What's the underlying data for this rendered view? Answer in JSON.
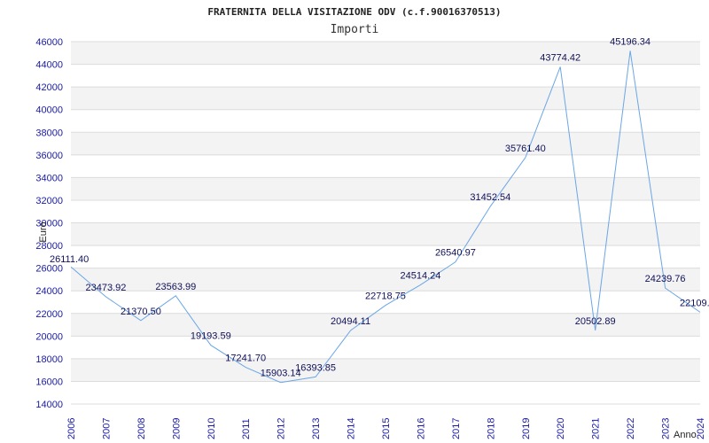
{
  "chart_data": {
    "type": "line",
    "title": "FRATERNITA DELLA VISITAZIONE ODV (c.f.90016370513)",
    "subtitle": "Importi",
    "xlabel": "Anno",
    "ylabel": "Euro",
    "ylim": [
      14000,
      46000
    ],
    "ystep": 2000,
    "grid": true,
    "line_color": "#6aa6e6",
    "x": [
      "2006",
      "2007",
      "2008",
      "2009",
      "2010",
      "2011",
      "2012",
      "2013",
      "2014",
      "2015",
      "2016",
      "2017",
      "2018",
      "2019",
      "2020",
      "2021",
      "2022",
      "2023",
      "2024"
    ],
    "values": [
      26111.4,
      23473.92,
      21370.5,
      23563.99,
      19193.59,
      17241.7,
      15903.14,
      16393.85,
      20494.11,
      22718.75,
      24514.24,
      26540.97,
      31452.54,
      35761.4,
      43774.42,
      20502.89,
      45196.34,
      24239.76,
      22109.0
    ],
    "value_labels": [
      "26111.40",
      "23473.92",
      "21370.50",
      "23563.99",
      "19193.59",
      "17241.70",
      "15903.14",
      "16393.85",
      "20494.11",
      "22718.75",
      "24514.24",
      "26540.97",
      "31452.54",
      "35761.40",
      "43774.42",
      "20502.89",
      "45196.34",
      "24239.76",
      "22109."
    ]
  }
}
